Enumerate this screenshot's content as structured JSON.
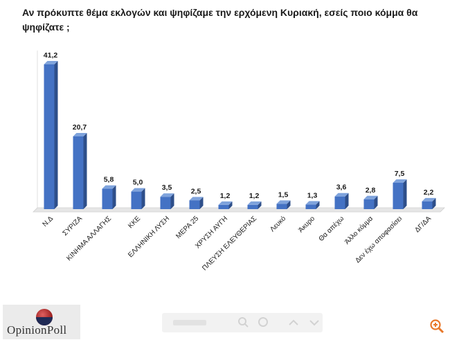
{
  "title": "Αν πρόκυπτε θέμα εκλογών και ψηφίζαμε την ερχόμενη Κυριακή, εσείς ποιο κόμμα θα ψηφίζατε ;",
  "chart_data": {
    "type": "bar",
    "categories": [
      "Ν.Δ",
      "ΣΥΡΙΖΑ",
      "ΚΙΝΗΜΑ ΑΛΛΑΓΗΣ",
      "ΚΚΕ",
      "ΕΛΛΗΝΙΚΗ ΛΥΣΗ",
      "ΜΕΡΑ 25",
      "ΧΡΥΣΗ ΑΥΓΗ",
      "ΠΛΕΥΣΗ ΕΛΕΥΘΕΡΙΑΣ",
      "Λευκό",
      "Άκυρο",
      "Θα απέχω",
      "Άλλο κόμμα",
      "Δεν έχω αποφασίσει",
      "ΔΓ/ΔΑ"
    ],
    "value_labels": [
      "41,2",
      "20,7",
      "5,8",
      "5,0",
      "3,5",
      "2,5",
      "1,2",
      "1,2",
      "1,5",
      "1,3",
      "3,6",
      "2,8",
      "7,5",
      "2,2"
    ],
    "values": [
      41.2,
      20.7,
      5.8,
      5.0,
      3.5,
      2.5,
      1.2,
      1.2,
      1.5,
      1.3,
      3.6,
      2.8,
      7.5,
      2.2
    ],
    "ylim": [
      0,
      41.2
    ],
    "grid": false,
    "legend": "none",
    "bar_color": "#4472C4"
  },
  "logo": {
    "brand": "OpinionPoll"
  },
  "icons": {
    "viewer_zoom": "magnifier-icon",
    "viewer_fit": "fit-screen-icon",
    "viewer_up": "chevron-up-icon",
    "viewer_down": "chevron-down-icon",
    "corner_zoom": "zoom-icon"
  }
}
